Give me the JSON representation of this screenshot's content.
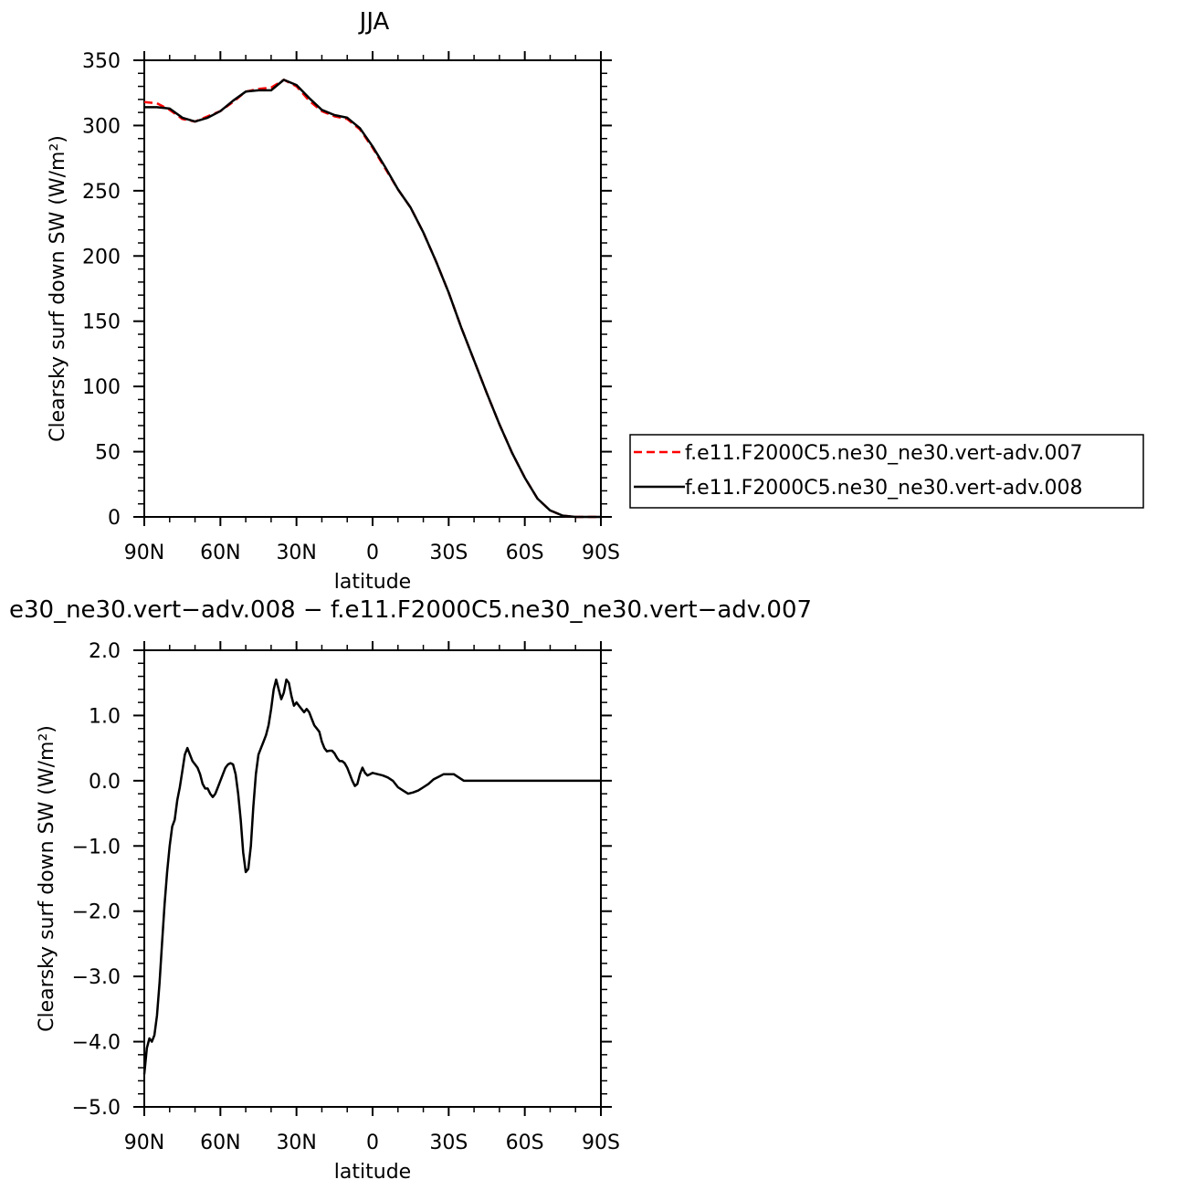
{
  "colors": {
    "series_007": "#ff0000",
    "series_008": "#000000",
    "axes": "#000000",
    "background": "#ffffff"
  },
  "chart_data": [
    {
      "type": "line",
      "title": "JJA",
      "xlabel": "latitude",
      "ylabel": "Clearsky surf down SW (W/m²)",
      "xlim": [
        90,
        -90
      ],
      "x_direction": "90N at left, 90S at right",
      "xticks": [
        90,
        60,
        30,
        0,
        -30,
        -60,
        -90
      ],
      "xtick_labels": [
        "90N",
        "60N",
        "30N",
        "0",
        "30S",
        "60S",
        "90S"
      ],
      "ylim": [
        0,
        350
      ],
      "yticks": [
        0,
        50,
        100,
        150,
        200,
        250,
        300,
        350
      ],
      "ytick_labels": [
        "0",
        "50",
        "100",
        "150",
        "200",
        "250",
        "300",
        "350"
      ],
      "grid": false,
      "legend_position": "right",
      "series": [
        {
          "name": "f.e11.F2000C5.ne30_ne30.vert-adv.007",
          "style": "dashed",
          "color": "#ff0000",
          "x": [
            90,
            85,
            80,
            75,
            70,
            65,
            60,
            55,
            50,
            45,
            40,
            35,
            30,
            25,
            20,
            15,
            10,
            5,
            0,
            -5,
            -10,
            -15,
            -20,
            -25,
            -30,
            -35,
            -40,
            -45,
            -50,
            -55,
            -60,
            -65,
            -70,
            -75,
            -80,
            -85,
            -90
          ],
          "y": [
            318,
            317,
            312,
            305,
            303,
            307,
            311,
            318,
            326,
            328,
            329,
            335,
            330,
            319,
            311,
            307,
            305,
            297,
            283,
            267,
            251,
            237,
            218,
            196,
            172,
            145,
            120,
            95,
            71,
            49,
            30,
            14,
            5,
            1,
            0,
            0,
            0
          ]
        },
        {
          "name": "f.e11.F2000C5.ne30_ne30.vert-adv.008",
          "style": "solid",
          "color": "#000000",
          "x": [
            90,
            85,
            80,
            75,
            70,
            65,
            60,
            55,
            50,
            45,
            40,
            35,
            30,
            25,
            20,
            15,
            10,
            5,
            0,
            -5,
            -10,
            -15,
            -20,
            -25,
            -30,
            -35,
            -40,
            -45,
            -50,
            -55,
            -60,
            -65,
            -70,
            -75,
            -80,
            -85,
            -90
          ],
          "y": [
            314,
            314,
            313,
            306,
            303,
            306,
            311,
            319,
            326,
            327,
            327,
            335,
            331,
            321,
            312,
            308,
            306,
            298,
            284,
            268,
            251,
            237,
            218,
            196,
            172,
            145,
            120,
            95,
            71,
            49,
            30,
            14,
            5,
            1,
            0,
            0,
            0
          ]
        }
      ]
    },
    {
      "type": "line",
      "title": "e30_ne30.vert−adv.008 − f.e11.F2000C5.ne30_ne30.vert−adv.007",
      "xlabel": "latitude",
      "ylabel": "Clearsky surf down SW (W/m²)",
      "xlim": [
        90,
        -90
      ],
      "x_direction": "90N at left, 90S at right",
      "xticks": [
        90,
        60,
        30,
        0,
        -30,
        -60,
        -90
      ],
      "xtick_labels": [
        "90N",
        "60N",
        "30N",
        "0",
        "30S",
        "60S",
        "90S"
      ],
      "ylim": [
        -5.0,
        2.0
      ],
      "yticks": [
        -5,
        -4,
        -3,
        -2,
        -1,
        0,
        1,
        2
      ],
      "ytick_labels": [
        "−5.0",
        "−4.0",
        "−3.0",
        "−2.0",
        "−1.0",
        "0.0",
        "1.0",
        "2.0"
      ],
      "grid": false,
      "series": [
        {
          "style": "solid",
          "color": "#000000",
          "x": [
            90,
            89,
            88,
            87,
            86,
            85,
            84,
            83,
            82,
            81,
            80,
            79,
            78,
            77,
            76,
            75,
            74,
            73,
            72,
            71,
            70,
            69,
            68,
            67,
            66,
            65,
            64,
            63,
            62,
            61,
            60,
            59,
            58,
            57,
            56,
            55,
            54,
            53,
            52,
            51,
            50,
            49,
            48,
            47,
            46,
            45,
            44,
            43,
            42,
            41,
            40,
            39,
            38,
            37,
            36,
            35,
            34,
            33,
            32,
            31,
            30,
            29,
            28,
            27,
            26,
            25,
            24,
            23,
            22,
            21,
            20,
            19,
            18,
            17,
            16,
            15,
            14,
            13,
            12,
            11,
            10,
            9,
            8,
            7,
            6,
            5,
            4,
            3,
            2,
            1,
            0,
            -2,
            -4,
            -6,
            -8,
            -10,
            -12,
            -14,
            -16,
            -18,
            -20,
            -22,
            -24,
            -26,
            -28,
            -30,
            -32,
            -34,
            -36,
            -38,
            -40,
            -42,
            -44,
            -46,
            -48,
            -50,
            -52,
            -54,
            -56,
            -58,
            -60,
            -62,
            -64,
            -66,
            -68,
            -70,
            -72,
            -74,
            -76,
            -78,
            -80,
            -82,
            -84,
            -86,
            -88,
            -90
          ],
          "y": [
            -4.5,
            -4.1,
            -3.95,
            -4.0,
            -3.9,
            -3.6,
            -3.1,
            -2.5,
            -1.9,
            -1.4,
            -1.0,
            -0.7,
            -0.6,
            -0.3,
            -0.1,
            0.15,
            0.4,
            0.5,
            0.4,
            0.3,
            0.25,
            0.2,
            0.1,
            -0.05,
            -0.12,
            -0.12,
            -0.2,
            -0.25,
            -0.2,
            -0.1,
            0.0,
            0.1,
            0.2,
            0.25,
            0.27,
            0.25,
            0.1,
            -0.2,
            -0.6,
            -1.1,
            -1.4,
            -1.35,
            -1.0,
            -0.4,
            0.1,
            0.4,
            0.5,
            0.6,
            0.7,
            0.85,
            1.1,
            1.4,
            1.55,
            1.4,
            1.25,
            1.35,
            1.55,
            1.5,
            1.3,
            1.15,
            1.2,
            1.15,
            1.1,
            1.05,
            1.1,
            1.05,
            0.95,
            0.85,
            0.8,
            0.75,
            0.6,
            0.5,
            0.45,
            0.46,
            0.46,
            0.42,
            0.35,
            0.3,
            0.3,
            0.27,
            0.2,
            0.1,
            0.0,
            -0.08,
            -0.05,
            0.1,
            0.2,
            0.12,
            0.08,
            0.1,
            0.12,
            0.1,
            0.08,
            0.05,
            0.0,
            -0.1,
            -0.15,
            -0.2,
            -0.18,
            -0.15,
            -0.1,
            -0.05,
            0.02,
            0.06,
            0.1,
            0.1,
            0.1,
            0.05,
            0.0,
            0.0,
            0.0,
            0.0,
            0.0,
            0.0,
            0.0,
            0.0,
            0.0,
            0.0,
            0.0,
            0.0,
            0.0,
            0.0,
            0.0,
            0.0,
            0.0,
            0.0,
            0.0,
            0.0,
            0.0,
            0.0,
            0.0,
            0.0,
            0.0,
            0.0,
            0.0,
            0.0
          ]
        }
      ]
    }
  ]
}
